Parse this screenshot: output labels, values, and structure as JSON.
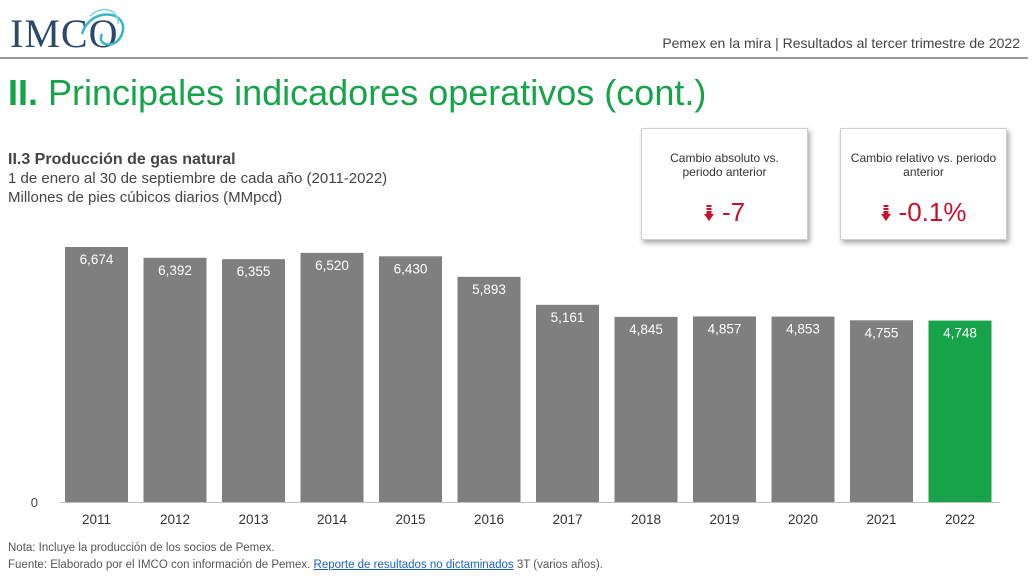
{
  "header": {
    "logo_text": "IMCO",
    "right_text": "Pemex en la mira | Resultados al tercer trimestre de 2022"
  },
  "title": {
    "numeral": "II.",
    "text": "Principales indicadores operativos (cont.)"
  },
  "chart_heading": {
    "title": "II.3 Producción de gas natural",
    "subtitle1": "1 de enero al 30 de septiembre de cada año (2011-2022)",
    "subtitle2": "Millones de pies cúbicos diarios (MMpcd)"
  },
  "kpis": [
    {
      "label": "Cambio absoluto vs. periodo anterior",
      "value": "-7"
    },
    {
      "label": "Cambio relativo vs. periodo anterior",
      "value": "-0.1%"
    }
  ],
  "chart_data": {
    "type": "bar",
    "categories": [
      "2011",
      "2012",
      "2013",
      "2014",
      "2015",
      "2016",
      "2017",
      "2018",
      "2019",
      "2020",
      "2021",
      "2022"
    ],
    "values": [
      6674,
      6392,
      6355,
      6520,
      6430,
      5893,
      5161,
      4845,
      4857,
      4853,
      4755,
      4748
    ],
    "data_labels": [
      "6,674",
      "6,392",
      "6,355",
      "6,520",
      "6,430",
      "5,893",
      "5,161",
      "4,845",
      "4,857",
      "4,853",
      "4,755",
      "4,748"
    ],
    "ylim": [
      0,
      6674
    ],
    "y_tick_label": "0",
    "grid": false,
    "legend": "none",
    "colors": {
      "default": "#7f7f7f",
      "highlight": "#16a34a"
    },
    "highlight_category": "2022"
  },
  "notes": {
    "nota": "Nota: Incluye la producción de los socios de Pemex.",
    "fuente_prefix": "Fuente: Elaborado por el IMCO con información de Pemex. ",
    "fuente_link": "Reporte de resultados no dictaminados",
    "fuente_suffix": " 3T (varios años)."
  }
}
